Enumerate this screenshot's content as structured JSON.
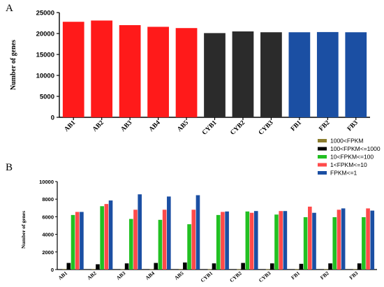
{
  "figure": {
    "panel_a_letter": "A",
    "panel_b_letter": "B"
  },
  "chart_data": [
    {
      "type": "bar",
      "panel": "A",
      "title": "",
      "xlabel": "",
      "ylabel": "Number of genes",
      "ylim": [
        0,
        25000
      ],
      "yticks": [
        "0",
        "5000",
        "10000",
        "15000",
        "20000",
        "25000"
      ],
      "categories": [
        "AB1",
        "AB2",
        "AB3",
        "AB4",
        "AB5",
        "CYB1",
        "CYB2",
        "CYB3",
        "FB1",
        "FB2",
        "FB3"
      ],
      "values": [
        22800,
        23100,
        22000,
        21600,
        21300,
        20100,
        20500,
        20300,
        20300,
        20350,
        20300
      ],
      "bar_colors": [
        "#ff1a1a",
        "#ff1a1a",
        "#ff1a1a",
        "#ff1a1a",
        "#ff1a1a",
        "#2b2b2b",
        "#2b2b2b",
        "#2b2b2b",
        "#1b4fa3",
        "#1b4fa3",
        "#1b4fa3"
      ],
      "grid": false
    },
    {
      "type": "bar",
      "panel": "B",
      "title": "",
      "xlabel": "",
      "ylabel": "Number of genes",
      "ylim": [
        0,
        10000
      ],
      "yticks": [
        "0",
        "2000",
        "4000",
        "6000",
        "8000",
        "10000"
      ],
      "categories": [
        "AB1",
        "AB2",
        "AB3",
        "AB4",
        "AB5",
        "CYB1",
        "CYB2",
        "CYB3",
        "FB1",
        "FB2",
        "FB3"
      ],
      "legend_position": "top-right",
      "grid": false,
      "series": [
        {
          "name": "1000<FPKM",
          "color": "#8b7d2e",
          "values": [
            60,
            60,
            50,
            50,
            60,
            40,
            40,
            40,
            50,
            50,
            50
          ]
        },
        {
          "name": "100<FPKM<=1000",
          "color": "#000000",
          "values": [
            750,
            600,
            700,
            750,
            800,
            700,
            750,
            700,
            650,
            700,
            700
          ]
        },
        {
          "name": "10<FPKM<=100",
          "color": "#22c022",
          "values": [
            6200,
            7200,
            5750,
            5650,
            5150,
            6200,
            6600,
            6250,
            5950,
            5950,
            5950
          ]
        },
        {
          "name": "1<FPKM<=10",
          "color": "#ff4a4a",
          "values": [
            6550,
            7450,
            6800,
            6800,
            6800,
            6550,
            6450,
            6650,
            7150,
            6800,
            6950
          ]
        },
        {
          "name": "FPKM<=1",
          "color": "#1b4fa3",
          "values": [
            6550,
            7850,
            8550,
            8300,
            8450,
            6600,
            6650,
            6650,
            6450,
            6950,
            6700
          ]
        }
      ]
    }
  ]
}
